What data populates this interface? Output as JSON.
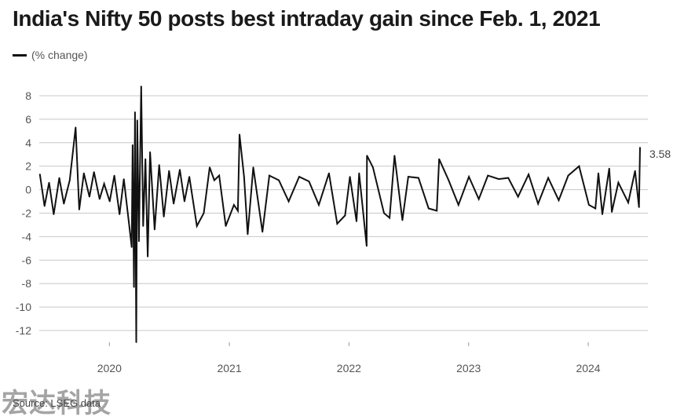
{
  "title": "India's Nifty 50 posts best intraday gain since Feb. 1, 2021",
  "source": "Source: LSEG data",
  "watermark": "宏达科技",
  "chart_data": {
    "type": "line",
    "title": "India's Nifty 50 posts best intraday gain since Feb. 1, 2021",
    "series": [
      {
        "name": "(% change)",
        "color": "#111111",
        "last_value": 3.58,
        "last_label": "3.58",
        "points": [
          [
            "2019-06-03",
            1.3
          ],
          [
            "2019-06-17",
            -1.4
          ],
          [
            "2019-07-01",
            0.6
          ],
          [
            "2019-07-15",
            -2.1
          ],
          [
            "2019-08-01",
            1.0
          ],
          [
            "2019-08-15",
            -1.2
          ],
          [
            "2019-09-02",
            0.8
          ],
          [
            "2019-09-20",
            5.3
          ],
          [
            "2019-10-01",
            -1.7
          ],
          [
            "2019-10-15",
            1.4
          ],
          [
            "2019-11-01",
            -0.6
          ],
          [
            "2019-11-15",
            1.5
          ],
          [
            "2019-12-02",
            -0.8
          ],
          [
            "2019-12-16",
            0.5
          ],
          [
            "2020-01-02",
            -1.0
          ],
          [
            "2020-01-16",
            1.2
          ],
          [
            "2020-02-01",
            -2.1
          ],
          [
            "2020-02-14",
            0.9
          ],
          [
            "2020-03-02",
            -3.2
          ],
          [
            "2020-03-09",
            -4.9
          ],
          [
            "2020-03-12",
            3.8
          ],
          [
            "2020-03-16",
            -8.3
          ],
          [
            "2020-03-19",
            6.6
          ],
          [
            "2020-03-23",
            -13.0
          ],
          [
            "2020-03-26",
            5.9
          ],
          [
            "2020-03-31",
            -4.4
          ],
          [
            "2020-04-07",
            8.8
          ],
          [
            "2020-04-13",
            -3.1
          ],
          [
            "2020-04-20",
            2.6
          ],
          [
            "2020-04-27",
            -5.7
          ],
          [
            "2020-05-04",
            3.2
          ],
          [
            "2020-05-18",
            -3.4
          ],
          [
            "2020-06-01",
            2.1
          ],
          [
            "2020-06-15",
            -2.3
          ],
          [
            "2020-07-01",
            1.6
          ],
          [
            "2020-07-15",
            -1.2
          ],
          [
            "2020-08-03",
            1.7
          ],
          [
            "2020-08-17",
            -1.0
          ],
          [
            "2020-09-01",
            1.1
          ],
          [
            "2020-09-24",
            -3.1
          ],
          [
            "2020-10-15",
            -2.0
          ],
          [
            "2020-11-02",
            1.9
          ],
          [
            "2020-11-16",
            0.8
          ],
          [
            "2020-12-01",
            1.2
          ],
          [
            "2020-12-21",
            -3.1
          ],
          [
            "2021-01-15",
            -1.3
          ],
          [
            "2021-01-27",
            -1.8
          ],
          [
            "2021-02-01",
            4.7
          ],
          [
            "2021-02-15",
            1.1
          ],
          [
            "2021-02-26",
            -3.8
          ],
          [
            "2021-03-15",
            1.9
          ],
          [
            "2021-04-12",
            -3.6
          ],
          [
            "2021-05-03",
            1.2
          ],
          [
            "2021-06-01",
            0.8
          ],
          [
            "2021-07-01",
            -1.0
          ],
          [
            "2021-08-02",
            1.1
          ],
          [
            "2021-09-01",
            0.7
          ],
          [
            "2021-10-01",
            -1.3
          ],
          [
            "2021-11-01",
            1.4
          ],
          [
            "2021-11-26",
            -2.9
          ],
          [
            "2021-12-20",
            -2.2
          ],
          [
            "2022-01-04",
            1.1
          ],
          [
            "2022-01-24",
            -2.7
          ],
          [
            "2022-02-01",
            1.4
          ],
          [
            "2022-02-24",
            -4.8
          ],
          [
            "2022-02-25",
            2.9
          ],
          [
            "2022-03-15",
            1.9
          ],
          [
            "2022-04-18",
            -2.0
          ],
          [
            "2022-05-05",
            -2.4
          ],
          [
            "2022-05-20",
            2.9
          ],
          [
            "2022-06-13",
            -2.6
          ],
          [
            "2022-07-01",
            1.1
          ],
          [
            "2022-08-01",
            1.0
          ],
          [
            "2022-09-01",
            -1.6
          ],
          [
            "2022-09-26",
            -1.8
          ],
          [
            "2022-10-03",
            2.6
          ],
          [
            "2022-11-01",
            0.8
          ],
          [
            "2022-12-01",
            -1.3
          ],
          [
            "2023-01-02",
            1.1
          ],
          [
            "2023-02-01",
            -0.8
          ],
          [
            "2023-03-01",
            1.2
          ],
          [
            "2023-04-03",
            0.9
          ],
          [
            "2023-05-02",
            1.0
          ],
          [
            "2023-06-01",
            -0.6
          ],
          [
            "2023-07-03",
            1.3
          ],
          [
            "2023-08-01",
            -1.2
          ],
          [
            "2023-09-01",
            1.0
          ],
          [
            "2023-10-03",
            -0.9
          ],
          [
            "2023-11-01",
            1.2
          ],
          [
            "2023-12-04",
            2.0
          ],
          [
            "2024-01-03",
            -1.3
          ],
          [
            "2024-01-23",
            -1.6
          ],
          [
            "2024-02-01",
            1.4
          ],
          [
            "2024-02-13",
            -2.1
          ],
          [
            "2024-03-05",
            1.8
          ],
          [
            "2024-03-13",
            -1.9
          ],
          [
            "2024-04-02",
            0.6
          ],
          [
            "2024-05-02",
            -1.1
          ],
          [
            "2024-05-23",
            1.6
          ],
          [
            "2024-06-04",
            -1.5
          ],
          [
            "2024-06-07",
            3.58
          ]
        ]
      }
    ],
    "x_ticks": [
      {
        "date": "2020-01-01",
        "label": "2020"
      },
      {
        "date": "2021-01-01",
        "label": "2021"
      },
      {
        "date": "2022-01-01",
        "label": "2022"
      },
      {
        "date": "2023-01-01",
        "label": "2023"
      },
      {
        "date": "2024-01-01",
        "label": "2024"
      }
    ],
    "xlim": [
      "2019-06-01",
      "2024-07-01"
    ],
    "ylim": [
      -13,
      9
    ],
    "y_ticks": [
      8,
      6,
      4,
      2,
      0,
      -2,
      -4,
      -6,
      -8,
      -10,
      -12
    ],
    "grid": "horizontal",
    "legend_position": "top-left"
  }
}
